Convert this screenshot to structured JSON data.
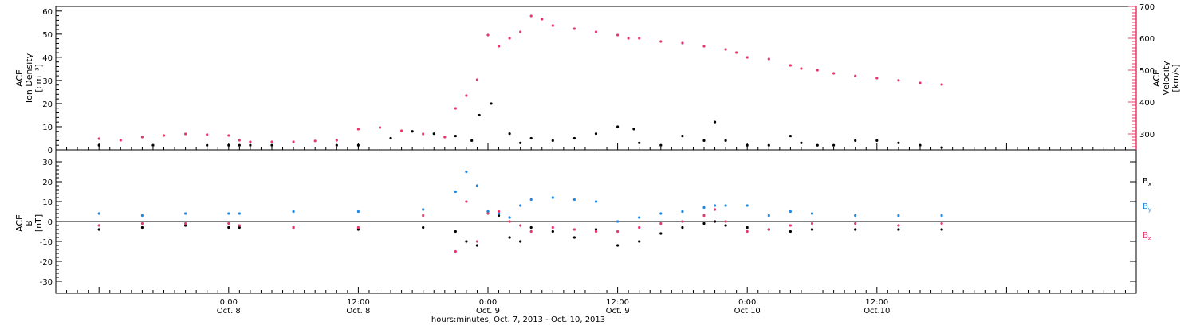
{
  "chart_data": [
    {
      "type": "scatter",
      "panel": "top",
      "ylabel_left_lines": [
        "ACE",
        "Ion Density",
        "[cm⁻³]"
      ],
      "ylabel_right_lines": [
        "ACE",
        "Velocity",
        "[km/s]"
      ],
      "ylim_left": [
        0,
        62
      ],
      "ylim_right": [
        250,
        700
      ],
      "yticks_left": [
        "0",
        "10",
        "20",
        "30",
        "40",
        "50",
        "60"
      ],
      "yticks_right": [
        "300",
        "400",
        "500",
        "600",
        "700"
      ],
      "colors": {
        "density": "#000000",
        "velocity": "#e8386a"
      },
      "series": [
        {
          "name": "density",
          "axis": "left",
          "x": [
            -12,
            -7,
            -2,
            0,
            1,
            2,
            4,
            10,
            12,
            15,
            17,
            19,
            21,
            22.5,
            23.2,
            24.3,
            26,
            27,
            28,
            30,
            32,
            34,
            36,
            37.5,
            38,
            40,
            42,
            44,
            45,
            46,
            48,
            50,
            52,
            53,
            54.5,
            56,
            58,
            60,
            62,
            64,
            66
          ],
          "y": [
            2,
            2,
            2,
            2,
            2,
            2,
            2,
            2,
            2,
            5,
            8,
            7,
            6,
            4,
            15,
            20,
            7,
            3,
            5,
            4,
            5,
            7,
            10,
            9,
            3,
            2,
            6,
            4,
            12,
            4,
            2,
            2,
            6,
            3,
            2,
            2,
            4,
            4,
            3,
            2,
            1
          ]
        },
        {
          "name": "velocity",
          "axis": "right",
          "x": [
            -12,
            -10,
            -8,
            -6,
            -4,
            -2,
            0,
            1,
            2,
            4,
            6,
            8,
            10,
            12,
            14,
            16,
            18,
            20,
            21,
            22,
            23,
            24,
            25,
            26,
            27,
            28,
            29,
            30,
            32,
            34,
            36,
            37,
            38,
            40,
            42,
            44,
            46,
            47,
            48,
            50,
            52,
            53,
            54.5,
            56,
            58,
            60,
            62,
            64,
            66
          ],
          "y": [
            285,
            280,
            290,
            295,
            300,
            298,
            295,
            280,
            275,
            275,
            275,
            278,
            280,
            315,
            320,
            310,
            300,
            290,
            380,
            420,
            470,
            610,
            575,
            600,
            620,
            670,
            660,
            640,
            630,
            620,
            610,
            600,
            600,
            590,
            585,
            575,
            565,
            555,
            540,
            535,
            515,
            505,
            500,
            490,
            482,
            475,
            468,
            460,
            455
          ]
        }
      ]
    },
    {
      "type": "scatter",
      "panel": "bottom",
      "ylabel_left_lines": [
        "ACE",
        "B",
        "[nT]"
      ],
      "ylim": [
        -36,
        36
      ],
      "yticks": [
        "-30",
        "-20",
        "-10",
        "0",
        "10",
        "20",
        "30"
      ],
      "xlim": [
        -16,
        84
      ],
      "xticks": [
        {
          "x": 0,
          "line1": "0:00",
          "line2": "Oct. 8"
        },
        {
          "x": 12,
          "line1": "12:00",
          "line2": "Oct. 8"
        },
        {
          "x": 24,
          "line1": "0:00",
          "line2": "Oct. 9"
        },
        {
          "x": 36,
          "line1": "12:00",
          "line2": "Oct. 9"
        },
        {
          "x": 48,
          "line1": "0:00",
          "line2": "Oct.10"
        },
        {
          "x": 60,
          "line1": "12:00",
          "line2": "Oct.10"
        }
      ],
      "xlabel": "hours:minutes, Oct.  7, 2013 - Oct. 10, 2013",
      "colors": {
        "Bx": "#000000",
        "By": "#1e88e5",
        "Bz": "#e8386a"
      },
      "series": [
        {
          "name": "Bx",
          "x": [
            -12,
            -8,
            -4,
            0,
            1,
            6,
            12,
            18,
            21,
            22,
            23,
            24,
            25,
            26,
            27,
            28,
            30,
            32,
            34,
            36,
            38,
            40,
            42,
            44,
            45,
            46,
            48,
            50,
            52,
            54,
            58,
            62,
            66
          ],
          "y": [
            -4,
            -3,
            -2,
            -3,
            -3,
            -3,
            -4,
            -3,
            -5,
            -10,
            -12,
            5,
            3,
            -8,
            -10,
            -3,
            -5,
            -8,
            -4,
            -12,
            -10,
            -6,
            -3,
            -1,
            0,
            -2,
            -3,
            -4,
            -5,
            -4,
            -4,
            -4,
            -4
          ]
        },
        {
          "name": "By",
          "x": [
            -12,
            -8,
            -4,
            0,
            1,
            6,
            12,
            18,
            21,
            22,
            23,
            24,
            25,
            26,
            27,
            28,
            30,
            32,
            34,
            36,
            38,
            40,
            42,
            44,
            45,
            46,
            48,
            50,
            52,
            54,
            58,
            62,
            66
          ],
          "y": [
            4,
            3,
            4,
            4,
            4,
            5,
            5,
            6,
            15,
            25,
            18,
            5,
            4,
            2,
            8,
            11,
            12,
            11,
            10,
            0,
            2,
            4,
            5,
            7,
            8,
            8,
            8,
            3,
            5,
            4,
            3,
            3,
            3
          ]
        },
        {
          "name": "Bz",
          "x": [
            -12,
            -8,
            -4,
            0,
            1,
            6,
            12,
            18,
            21,
            22,
            23,
            24,
            25,
            26,
            27,
            28,
            30,
            32,
            34,
            36,
            38,
            40,
            42,
            44,
            45,
            46,
            48,
            50,
            52,
            54,
            58,
            62,
            66
          ],
          "y": [
            -2,
            -1,
            -1,
            -1,
            -2,
            -3,
            -3,
            3,
            -15,
            10,
            -10,
            4,
            5,
            0,
            -2,
            -5,
            -3,
            -4,
            -5,
            -5,
            -3,
            -1,
            0,
            3,
            6,
            0,
            -5,
            -4,
            -2,
            -1,
            -1,
            -2,
            -1
          ]
        }
      ],
      "legend": [
        "B",
        "B",
        "B"
      ],
      "legend_subscripts": [
        "x",
        "y",
        "z"
      ]
    }
  ]
}
